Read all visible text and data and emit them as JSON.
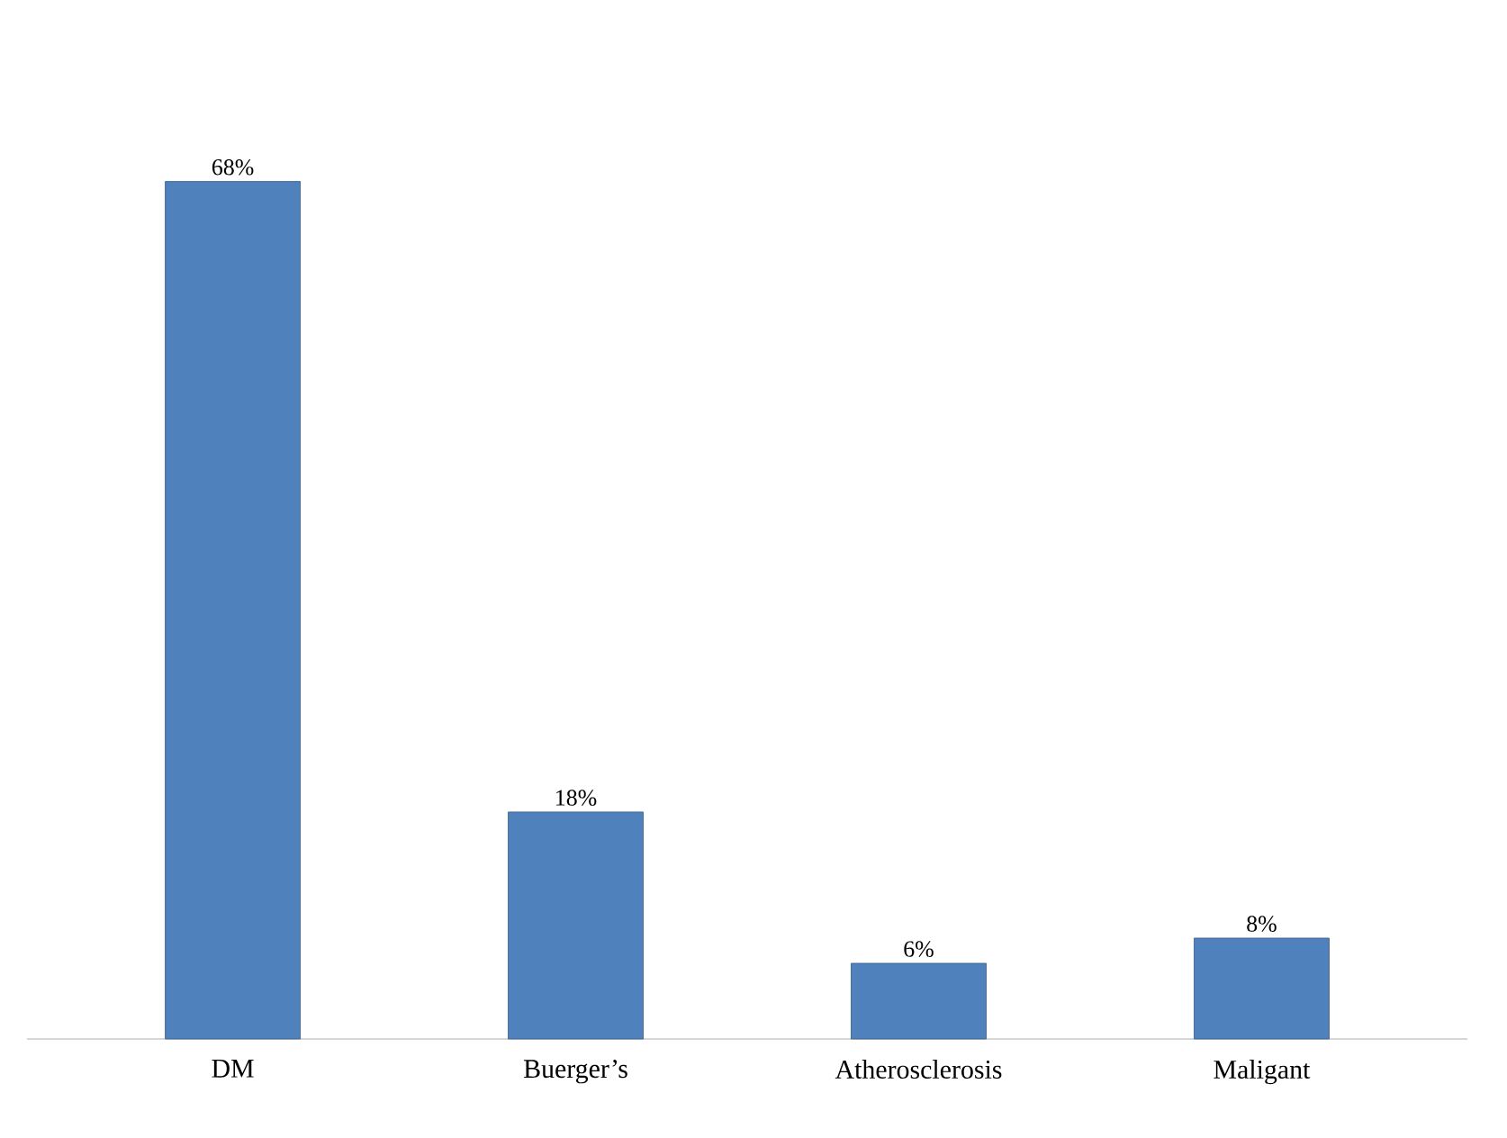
{
  "chart_data": {
    "type": "bar",
    "categories": [
      "DM",
      "Buerger’s",
      "Atherosclerosis",
      "Maligant"
    ],
    "values": [
      68,
      18,
      6,
      8
    ],
    "value_labels": [
      "68%",
      "18%",
      "6%",
      "8%"
    ],
    "color": "#4f81bd",
    "tick_labels": "x"
  }
}
